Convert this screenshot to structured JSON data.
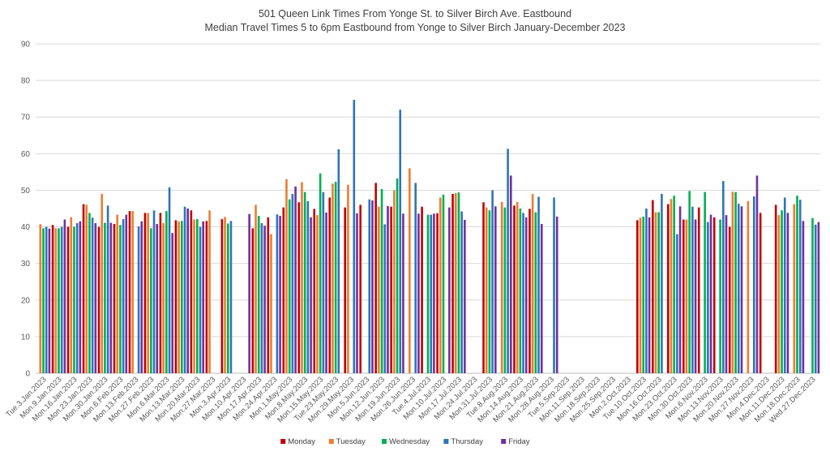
{
  "chart_data": {
    "type": "bar",
    "title": "501 Queen Link Times From Yonge St. to Silver Birch Ave. Eastbound",
    "subtitle": "Median Travel Times 5 to 6pm Eastbound from Yonge to Silver Birch January-December 2023",
    "xlabel": "",
    "ylabel": "",
    "ylim": [
      0,
      90
    ],
    "yticks": [
      0,
      10,
      20,
      30,
      40,
      50,
      60,
      70,
      80,
      90
    ],
    "grid": true,
    "legend": "bottom",
    "colors": {
      "Monday": "#c00000",
      "Tuesday": "#ed7d31",
      "Wednesday": "#00b050",
      "Thursday": "#2e75b6",
      "Friday": "#7030a0",
      "grid": "#d9d9d9",
      "axis": "#bfbfbf"
    },
    "categories": [
      "Tue.3.Jan.2023",
      "Mon.9.Jan.2023",
      "Mon.16.Jan.2023",
      "Mon.23.Jan.2023",
      "Mon.30.Jan.2023",
      "Mon.6.Feb.2023",
      "Mon.13.Feb.2023",
      "Mon.27.Feb.2023",
      "Mon.6.Mar.2023",
      "Mon.13.Mar.2023",
      "Mon.20.Mar.2023",
      "Mon.27.Mar.2023",
      "Mon.3.Apr.2023",
      "Mon.10.Apr.2023",
      "Mon.17.Apr.2023",
      "Mon.24.Apr.2023",
      "Mon.1.May.2023",
      "Mon.8.May.2023",
      "Mon.15.May.2023",
      "Tue.23.May.2023",
      "Mon.29.May.2023",
      "Mon.5.Jun.2023",
      "Mon.12.Jun.2023",
      "Mon.19.Jun.2023",
      "Mon.26.Jun.2023",
      "Tue.4.Jul.2023",
      "Mon.10.Jul.2023",
      "Mon.17.Jul.2023",
      "Mon.24.Jul.2023",
      "Mon.31.Jul.2023",
      "Tue.8.Aug.2023",
      "Mon.14.Aug.2023",
      "Mon.21.Aug.2023",
      "Mon.28.Aug.2023",
      "Tue.5.Sep.2023",
      "Mon.11.Sep.2023",
      "Mon.18.Sep.2023",
      "Mon.25.Sep.2023",
      "Mon.2.Oct.2023",
      "Tue.10.Oct.2023",
      "Mon.16.Oct.2023",
      "Mon.23.Oct.2023",
      "Mon.30.Oct.2023",
      "Mon.6.Nov.2023",
      "Mon.13.Nov.2023",
      "Mon.20.Nov.2023",
      "Mon.27.Nov.2023",
      "Mon.4.Dec.2023",
      "Mon.11.Dec.2023",
      "Mon.18.Dec.2023",
      "Wed.27.Dec.2023"
    ],
    "series": [
      {
        "name": "Monday",
        "values": [
          null,
          40.5,
          40.0,
          46.2,
          40.0,
          40.8,
          44.3,
          43.8,
          43.8,
          41.8,
          44.5,
          41.6,
          42.1,
          null,
          39.6,
          42.6,
          45.3,
          46.7,
          44.9,
          48.0,
          45.3,
          46.0,
          52.0,
          45.5,
          null,
          45.5,
          43.7,
          49.0,
          null,
          46.7,
          null,
          45.8,
          44.9,
          null,
          null,
          null,
          null,
          null,
          null,
          41.8,
          47.3,
          46.2,
          42.0,
          45.3,
          42.6,
          40.0,
          null,
          43.8,
          46.0,
          null,
          null
        ]
      },
      {
        "name": "Tuesday",
        "values": [
          40.7,
          39.6,
          42.6,
          46.0,
          49.0,
          43.3,
          44.3,
          43.8,
          41.0,
          41.5,
          42.0,
          44.5,
          42.7,
          null,
          46.0,
          38.0,
          53.0,
          52.2,
          43.2,
          51.8,
          51.5,
          null,
          45.5,
          50.0,
          56.0,
          null,
          48.0,
          49.2,
          null,
          45.3,
          46.8,
          46.8,
          49.0,
          null,
          null,
          null,
          null,
          null,
          null,
          42.5,
          44.0,
          47.6,
          42.0,
          null,
          null,
          49.6,
          47.0,
          null,
          43.2,
          46.2,
          null
        ]
      },
      {
        "name": "Wednesday",
        "values": [
          39.6,
          39.6,
          40.0,
          43.8,
          41.1,
          40.5,
          null,
          39.6,
          44.3,
          41.6,
          42.1,
          null,
          40.9,
          null,
          43.0,
          null,
          47.5,
          49.5,
          54.6,
          52.3,
          null,
          null,
          50.3,
          53.2,
          null,
          43.3,
          48.8,
          49.4,
          null,
          44.5,
          45.3,
          45.0,
          44.0,
          null,
          null,
          null,
          null,
          null,
          null,
          42.8,
          44.0,
          48.5,
          49.8,
          49.5,
          42.0,
          49.5,
          null,
          null,
          44.5,
          48.5,
          42.4
        ]
      },
      {
        "name": "Thursday",
        "values": [
          40.0,
          40.0,
          41.0,
          42.5,
          45.8,
          42.1,
          40.1,
          44.5,
          50.8,
          45.5,
          40.0,
          null,
          41.6,
          null,
          41.0,
          43.4,
          49.0,
          47.0,
          49.5,
          61.2,
          74.7,
          47.5,
          40.7,
          72.0,
          52.0,
          43.3,
          null,
          44.2,
          null,
          50.0,
          61.3,
          43.8,
          48.2,
          48.0,
          null,
          null,
          null,
          null,
          null,
          45.0,
          49.0,
          38.0,
          45.5,
          41.3,
          52.5,
          46.3,
          48.3,
          null,
          48.0,
          47.4,
          40.6
        ]
      },
      {
        "name": "Friday",
        "values": [
          39.5,
          42.0,
          41.5,
          41.0,
          41.1,
          43.3,
          41.5,
          40.8,
          38.3,
          45.0,
          41.5,
          null,
          null,
          43.5,
          40.3,
          43.0,
          51.0,
          42.6,
          43.9,
          null,
          43.7,
          47.2,
          45.7,
          43.6,
          43.6,
          43.6,
          45.3,
          41.9,
          null,
          45.6,
          54.0,
          42.6,
          40.8,
          42.8,
          null,
          null,
          null,
          null,
          null,
          42.6,
          null,
          45.6,
          42.0,
          43.3,
          43.2,
          45.6,
          54.0,
          null,
          43.8,
          41.6,
          41.3
        ]
      }
    ]
  }
}
